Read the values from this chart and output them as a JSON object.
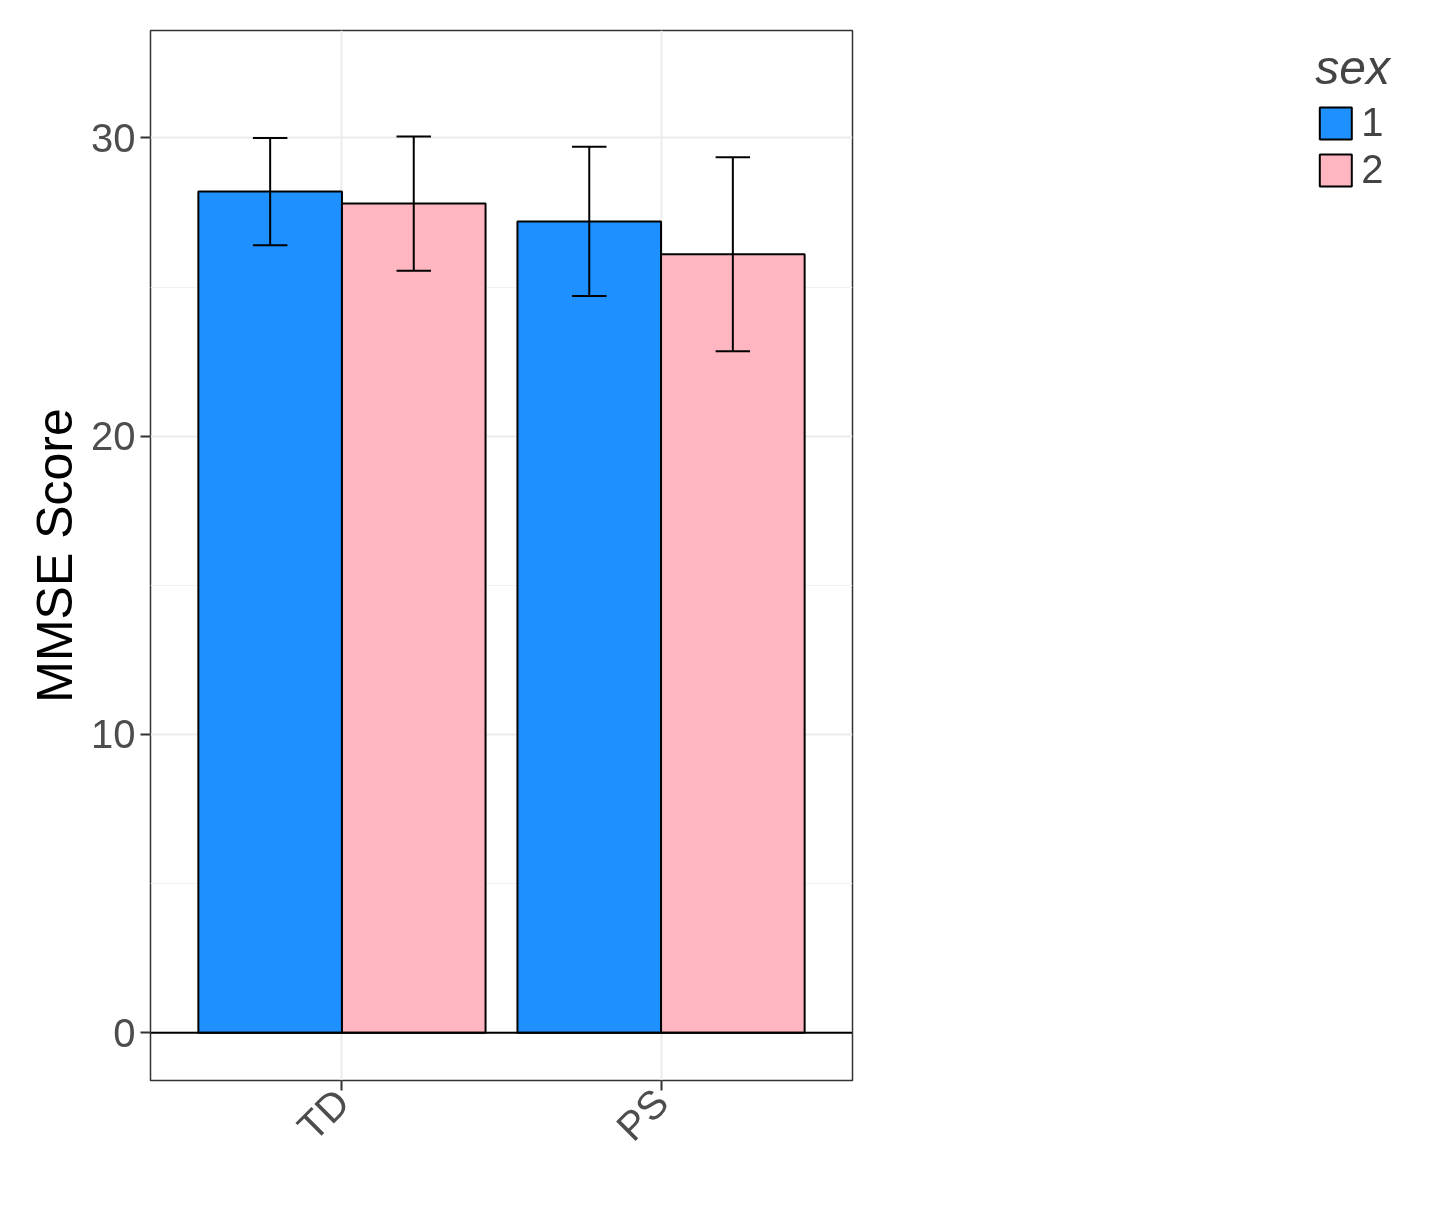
{
  "chart_data": {
    "type": "bar",
    "ylabel": "MMSE Score",
    "legend_title": "sex",
    "categories": [
      "TD",
      "PS"
    ],
    "series": [
      {
        "name": "1",
        "color": "#1e90ff",
        "values": [
          28.2,
          27.2
        ],
        "errors": [
          1.8,
          2.5
        ]
      },
      {
        "name": "2",
        "color": "#ffb6c1",
        "values": [
          27.8,
          26.1
        ],
        "errors": [
          2.25,
          3.25
        ]
      }
    ],
    "ylim": [
      -1.6,
      33.6
    ],
    "yticks": [
      0,
      10,
      20,
      30
    ],
    "grid": true,
    "legend": "right",
    "ref_lines": [
      {
        "axis": "y",
        "value": 0,
        "color": "#000000"
      }
    ]
  }
}
